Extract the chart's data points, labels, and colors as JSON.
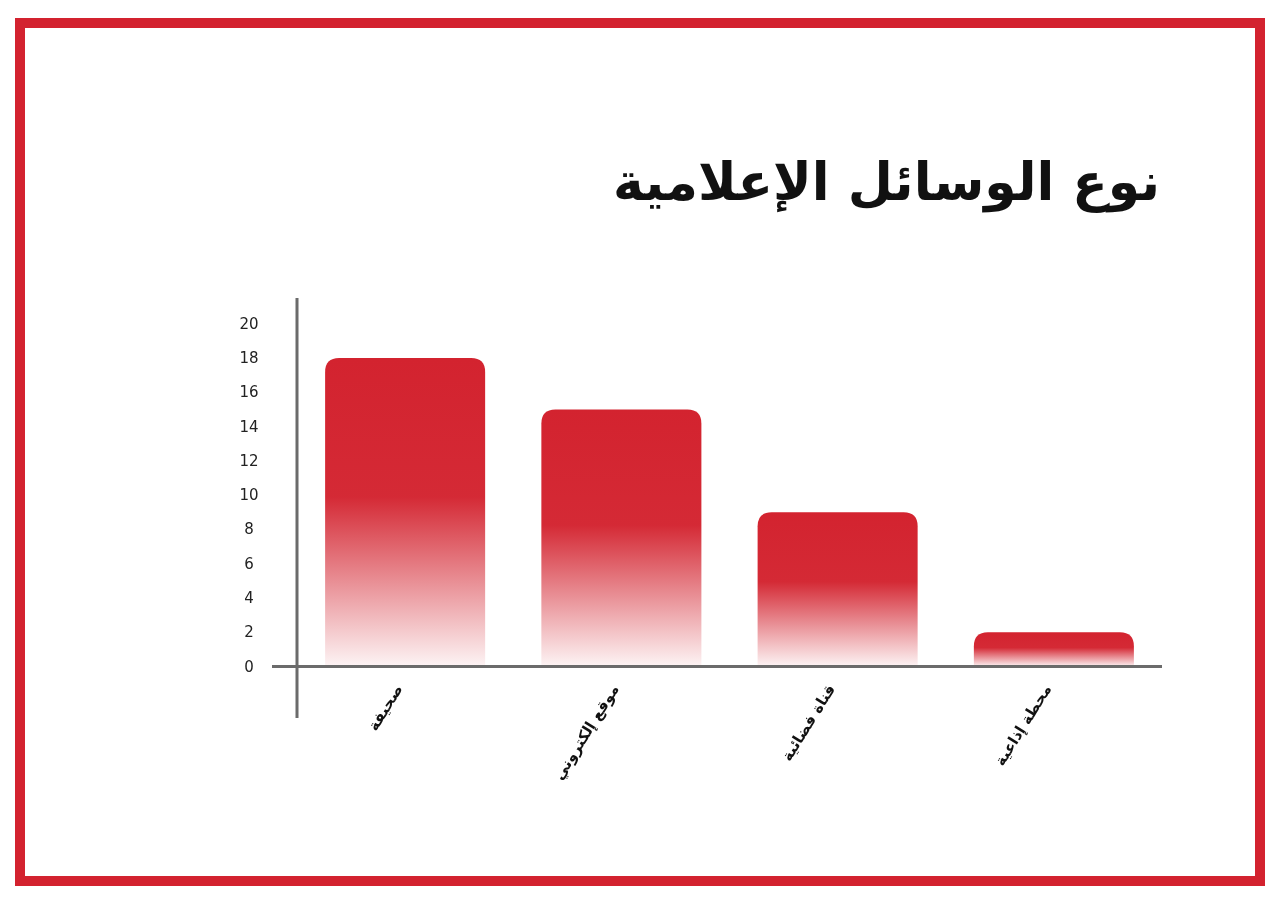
{
  "chart_data": {
    "type": "bar",
    "title": "نوع الوسائل الإعلامية",
    "categories": [
      "صحيفة",
      "موقع إلكتروني",
      "قناة فضائية",
      "محطة إذاعية"
    ],
    "values": [
      18,
      15,
      9,
      2
    ],
    "color": "#d3232f",
    "ylim": [
      -3,
      21.5
    ],
    "yticks": [
      0,
      2,
      4,
      6,
      8,
      10,
      12,
      14,
      16,
      18,
      20
    ]
  }
}
